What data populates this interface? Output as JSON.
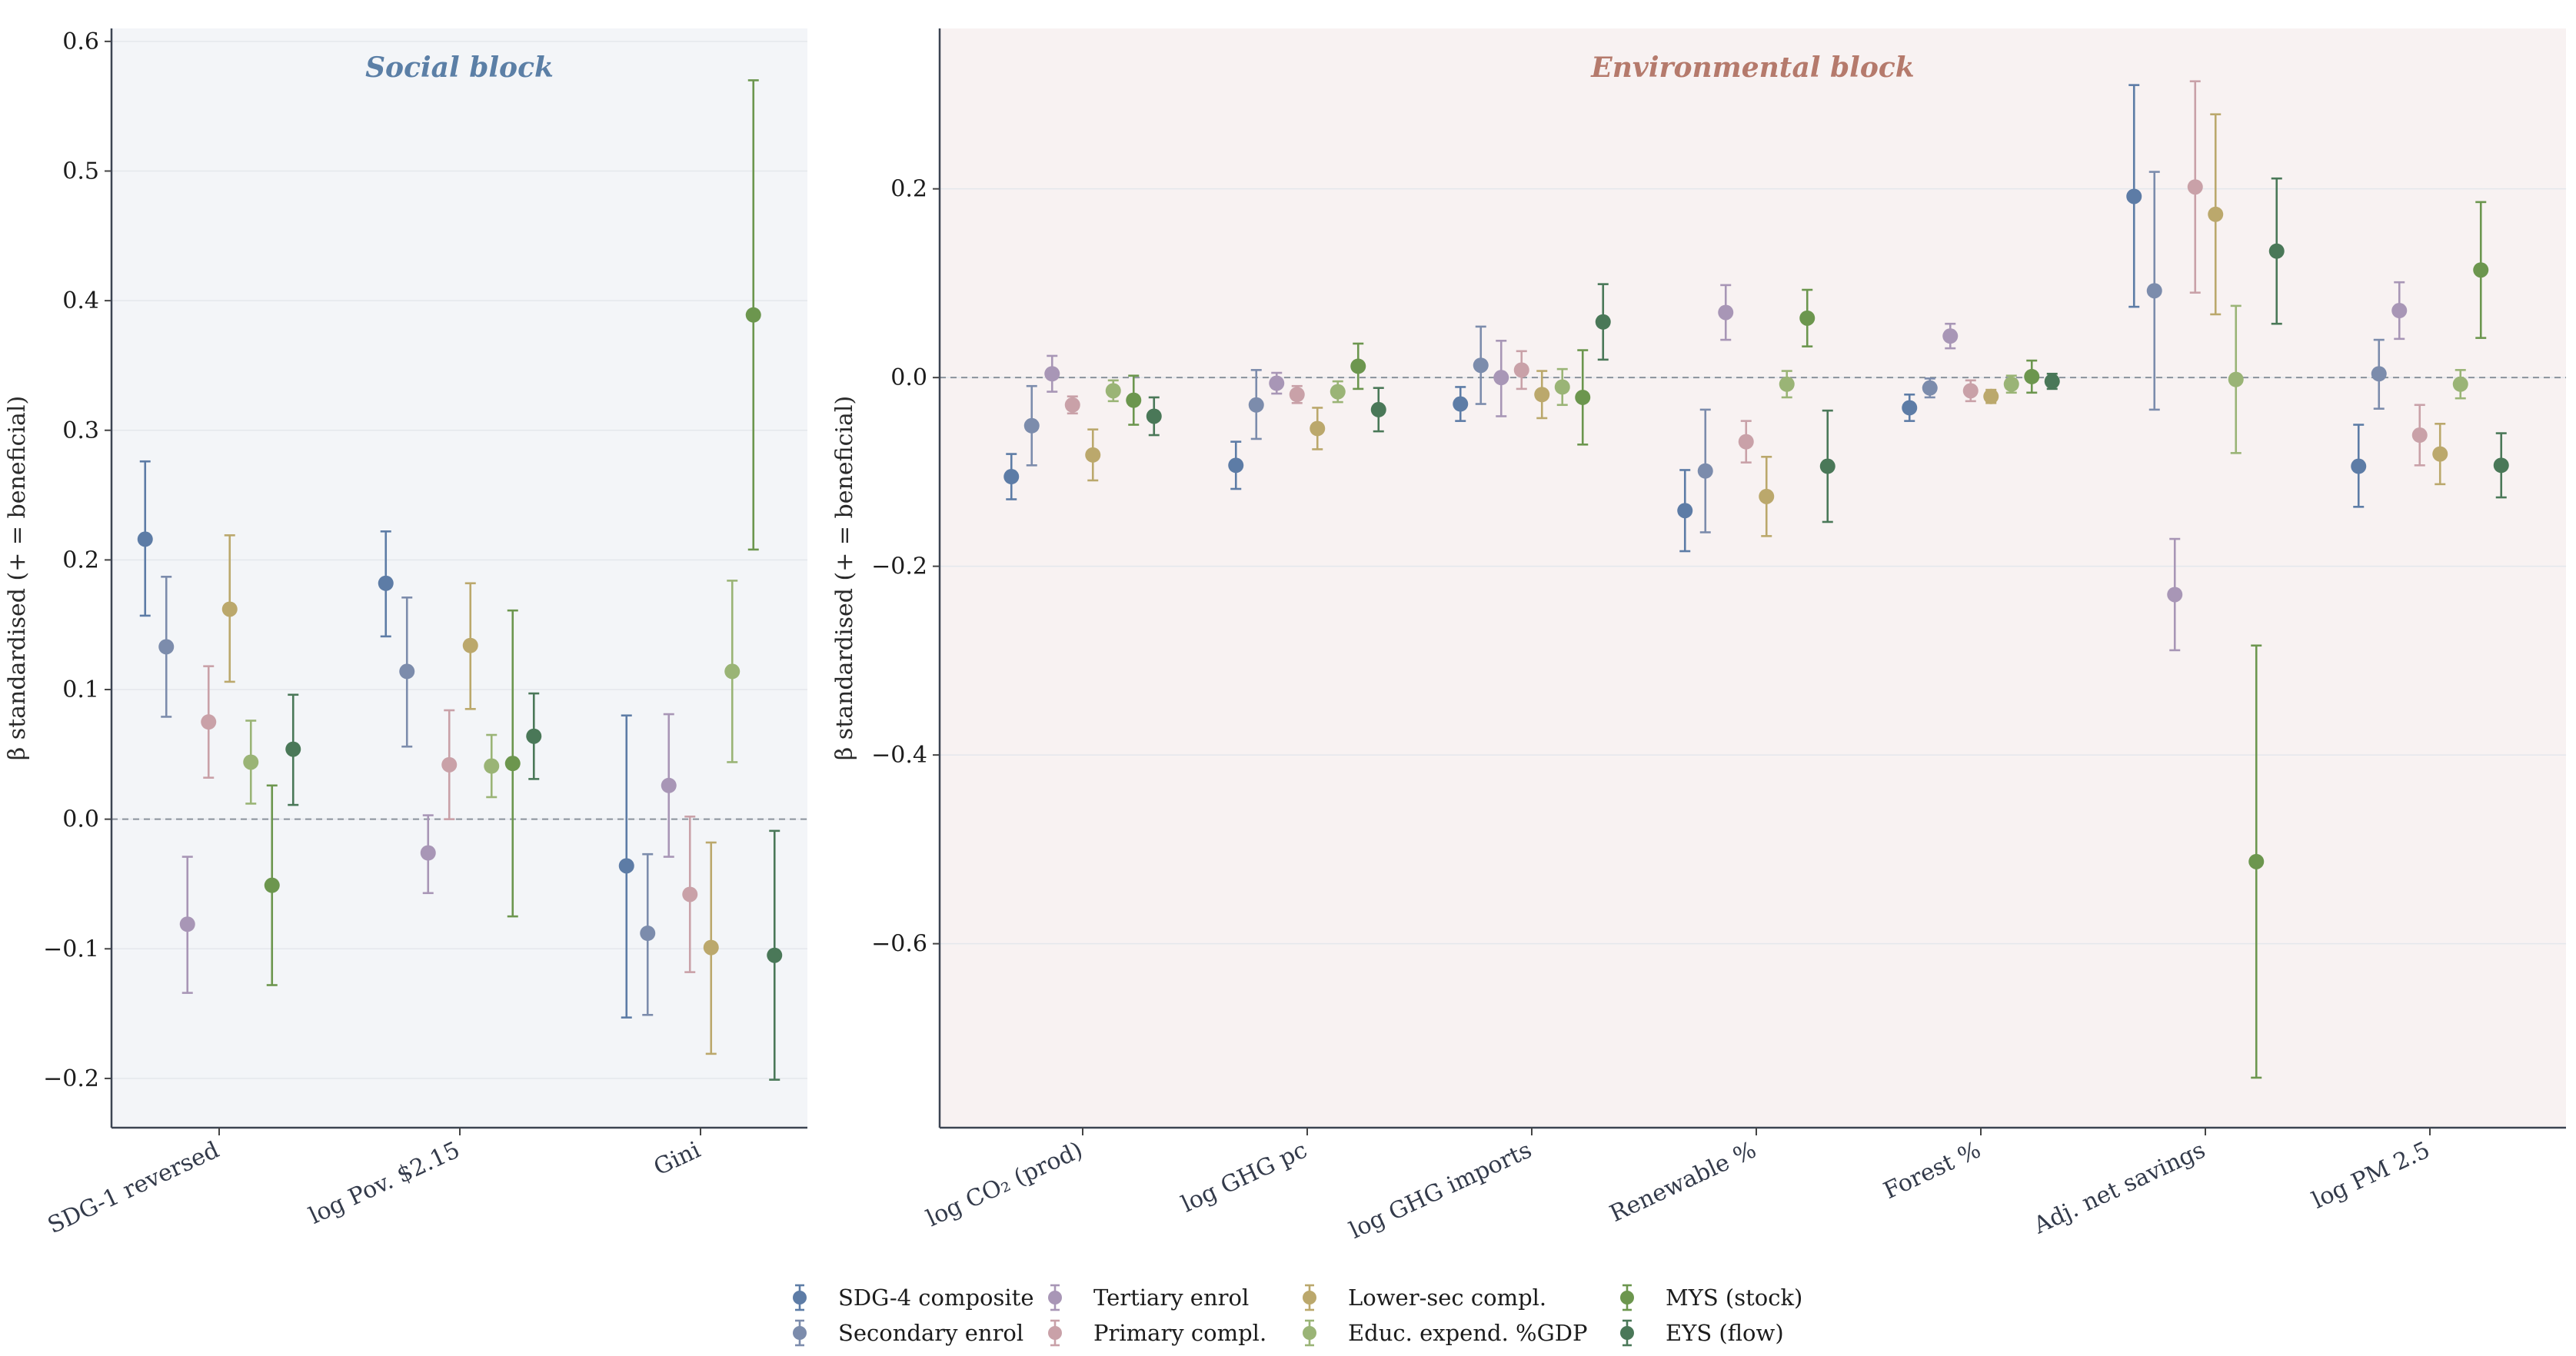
{
  "chart_data": [
    {
      "type": "scatter",
      "subtype": "point estimates with error bars",
      "title": "Social block",
      "title_color": "#5b7fa6",
      "background": "#f3f5f8",
      "ylabel": "β standardised (+ = beneficial)",
      "ylim": [
        -0.238,
        0.61
      ],
      "yticks": [
        -0.2,
        -0.1,
        0.0,
        0.1,
        0.2,
        0.3,
        0.4,
        0.5,
        0.6
      ],
      "ytick_labels": [
        "−0.2",
        "−0.1",
        "0.0",
        "0.1",
        "0.2",
        "0.3",
        "0.4",
        "0.5",
        "0.6"
      ],
      "reference_line": 0,
      "categories": [
        "SDG-1 reversed",
        "log Pov. $2.15",
        "Gini"
      ],
      "series": [
        {
          "name": "SDG-4 composite",
          "values": [
            0.216,
            0.182,
            -0.036
          ],
          "low": [
            0.157,
            0.141,
            -0.153
          ],
          "high": [
            0.276,
            0.222,
            0.08
          ]
        },
        {
          "name": "Secondary enrol",
          "values": [
            0.133,
            0.114,
            -0.088
          ],
          "low": [
            0.079,
            0.056,
            -0.151
          ],
          "high": [
            0.187,
            0.171,
            -0.027
          ]
        },
        {
          "name": "Tertiary enrol",
          "values": [
            -0.081,
            -0.026,
            0.026
          ],
          "low": [
            -0.134,
            -0.057,
            -0.029
          ],
          "high": [
            -0.029,
            0.003,
            0.081
          ]
        },
        {
          "name": "Primary compl.",
          "values": [
            0.075,
            0.042,
            -0.058
          ],
          "low": [
            0.032,
            0.0,
            -0.118
          ],
          "high": [
            0.118,
            0.084,
            0.002
          ]
        },
        {
          "name": "Lower-sec compl.",
          "values": [
            0.162,
            0.134,
            -0.099
          ],
          "low": [
            0.106,
            0.085,
            -0.181
          ],
          "high": [
            0.219,
            0.182,
            -0.018
          ]
        },
        {
          "name": "Educ. expend. %GDP",
          "values": [
            0.044,
            0.041,
            0.114
          ],
          "low": [
            0.012,
            0.017,
            0.044
          ],
          "high": [
            0.076,
            0.065,
            0.184
          ]
        },
        {
          "name": "MYS (stock)",
          "values": [
            -0.051,
            0.043,
            0.389
          ],
          "low": [
            -0.128,
            -0.075,
            0.208
          ],
          "high": [
            0.026,
            0.161,
            0.57
          ]
        },
        {
          "name": "EYS (flow)",
          "values": [
            0.054,
            0.064,
            -0.105
          ],
          "low": [
            0.011,
            0.031,
            -0.201
          ],
          "high": [
            0.096,
            0.097,
            -0.009
          ]
        }
      ]
    },
    {
      "type": "scatter",
      "subtype": "point estimates with error bars",
      "title": "Environmental block",
      "title_color": "#b57a6c",
      "background": "#f8f2f2",
      "ylabel": "β standardised (+ = beneficial)",
      "ylim": [
        -0.795,
        0.37
      ],
      "yticks": [
        -0.6,
        -0.4,
        -0.2,
        0.0,
        0.2
      ],
      "ytick_labels": [
        "−0.6",
        "−0.4",
        "−0.2",
        "0.0",
        "0.2"
      ],
      "reference_line": 0,
      "categories": [
        "log CO₂ (prod)",
        "log GHG pc",
        "log GHG imports",
        "Renewable %",
        "Forest %",
        "Adj. net savings",
        "log PM 2.5"
      ],
      "series": [
        {
          "name": "SDG-4 composite",
          "values": [
            -0.105,
            -0.093,
            -0.028,
            -0.141,
            -0.032,
            0.192,
            -0.094
          ],
          "low": [
            -0.129,
            -0.118,
            -0.046,
            -0.184,
            -0.046,
            0.075,
            -0.137
          ],
          "high": [
            -0.081,
            -0.068,
            -0.01,
            -0.098,
            -0.018,
            0.31,
            -0.05
          ]
        },
        {
          "name": "Secondary enrol",
          "values": [
            -0.051,
            -0.029,
            0.013,
            -0.099,
            -0.011,
            0.092,
            0.004
          ],
          "low": [
            -0.093,
            -0.065,
            -0.028,
            -0.164,
            -0.021,
            -0.034,
            -0.033
          ],
          "high": [
            -0.009,
            0.008,
            0.054,
            -0.034,
            -0.001,
            0.218,
            0.04
          ]
        },
        {
          "name": "Tertiary enrol",
          "values": [
            0.004,
            -0.006,
            0.0,
            0.069,
            0.044,
            -0.23,
            0.071
          ],
          "low": [
            -0.015,
            -0.017,
            -0.041,
            0.04,
            0.031,
            -0.289,
            0.041
          ],
          "high": [
            0.023,
            0.005,
            0.039,
            0.098,
            0.057,
            -0.171,
            0.101
          ]
        },
        {
          "name": "Primary compl.",
          "values": [
            -0.029,
            -0.018,
            0.008,
            -0.068,
            -0.014,
            0.202,
            -0.061
          ],
          "low": [
            -0.038,
            -0.027,
            -0.012,
            -0.09,
            -0.025,
            0.09,
            -0.093
          ],
          "high": [
            -0.02,
            -0.009,
            0.028,
            -0.046,
            -0.003,
            0.314,
            -0.029
          ]
        },
        {
          "name": "Lower-sec compl.",
          "values": [
            -0.082,
            -0.054,
            -0.018,
            -0.126,
            -0.02,
            0.173,
            -0.081
          ],
          "low": [
            -0.109,
            -0.076,
            -0.043,
            -0.168,
            -0.027,
            0.067,
            -0.113
          ],
          "high": [
            -0.055,
            -0.032,
            0.007,
            -0.084,
            -0.013,
            0.279,
            -0.049
          ]
        },
        {
          "name": "Educ. expend. %GDP",
          "values": [
            -0.014,
            -0.015,
            -0.01,
            -0.007,
            -0.007,
            -0.002,
            -0.007
          ],
          "low": [
            -0.025,
            -0.026,
            -0.029,
            -0.021,
            -0.016,
            -0.08,
            -0.022
          ],
          "high": [
            -0.003,
            -0.004,
            0.009,
            0.007,
            0.002,
            0.076,
            0.008
          ]
        },
        {
          "name": "MYS (stock)",
          "values": [
            -0.024,
            0.012,
            -0.021,
            0.063,
            0.001,
            -0.513,
            0.114
          ],
          "low": [
            -0.05,
            -0.012,
            -0.071,
            0.033,
            -0.016,
            -0.742,
            0.042
          ],
          "high": [
            0.002,
            0.036,
            0.029,
            0.093,
            0.018,
            -0.284,
            0.186
          ]
        },
        {
          "name": "EYS (flow)",
          "values": [
            -0.041,
            -0.034,
            0.059,
            -0.094,
            -0.004,
            0.134,
            -0.093
          ],
          "low": [
            -0.061,
            -0.057,
            0.019,
            -0.153,
            -0.012,
            0.057,
            -0.127
          ],
          "high": [
            -0.021,
            -0.011,
            0.099,
            -0.035,
            0.004,
            0.211,
            -0.059
          ]
        }
      ]
    }
  ],
  "legend": {
    "placement": "bottom-center",
    "items": [
      {
        "name": "SDG-4 composite",
        "color": "#5d7ca6"
      },
      {
        "name": "Secondary enrol",
        "color": "#7c8cac"
      },
      {
        "name": "Tertiary enrol",
        "color": "#a896b6"
      },
      {
        "name": "Primary compl.",
        "color": "#c9a1a8"
      },
      {
        "name": "Lower-sec compl.",
        "color": "#bba86c"
      },
      {
        "name": "Educ. expend. %GDP",
        "color": "#9ab476"
      },
      {
        "name": "MYS (stock)",
        "color": "#6c964e"
      },
      {
        "name": "EYS (flow)",
        "color": "#4a7858"
      }
    ]
  }
}
